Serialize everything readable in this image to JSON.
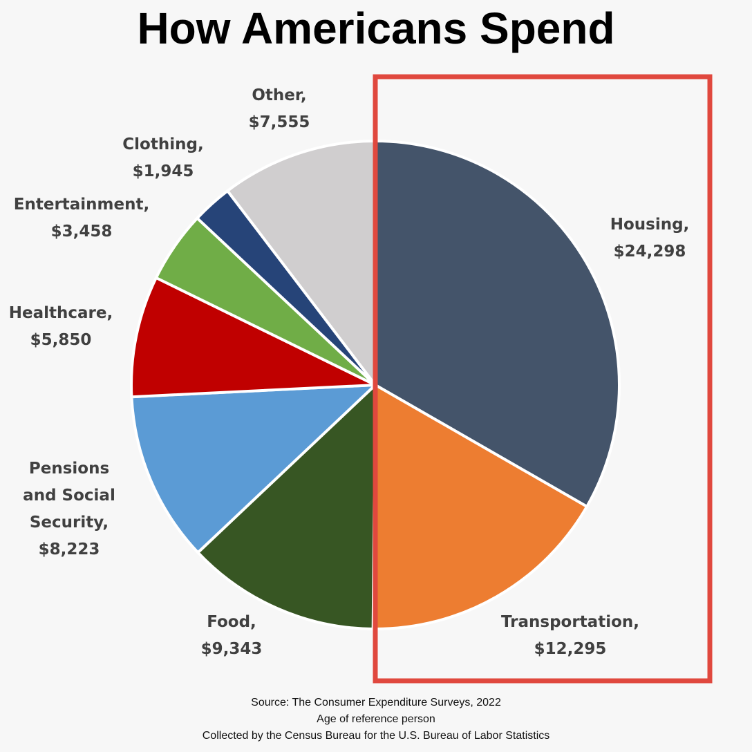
{
  "chart_data": {
    "type": "pie",
    "title": "How Americans Spend",
    "categories": [
      "Housing,",
      "Transportation,",
      "Food,",
      "Pensions and Social Security,",
      "Healthcare,",
      "Entertainment,",
      "Clothing,",
      "Other,"
    ],
    "values": [
      24298,
      12295,
      9343,
      8223,
      5850,
      3458,
      1945,
      7555
    ],
    "value_labels": [
      "$24,298",
      "$12,295",
      "$9,343",
      "$8,223",
      "$5,850",
      "$3,458",
      "$1,945",
      "$7,555"
    ],
    "colors": [
      "#44546a",
      "#ed7d31",
      "#375623",
      "#5b9bd5",
      "#c00000",
      "#70ad47",
      "#264478",
      "#d0cecf"
    ],
    "notes": [
      "Source: The Consumer Expenditure Surveys, 2022",
      "Age of reference person",
      "Collected by the Census Bureau for the U.S. Bureau of Labor Statistics"
    ]
  }
}
